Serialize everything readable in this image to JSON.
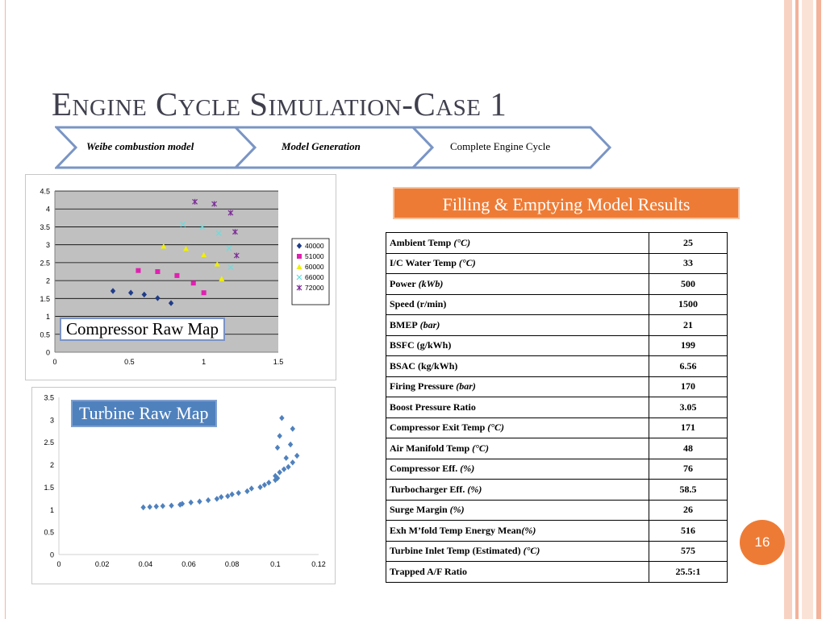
{
  "slide": {
    "title": "Engine Cycle Simulation-Case 1",
    "page_number": "16",
    "accent_color": "#ee7b35",
    "steps": [
      {
        "label": "Weibe combustion model",
        "italic": true
      },
      {
        "label": "Model Generation",
        "italic": true
      },
      {
        "label": "Complete Engine Cycle",
        "italic": false
      }
    ],
    "compressor_label": "Compressor Raw Map",
    "turbine_label": "Turbine Raw Map",
    "results_title": "Filling & Emptying Model Results"
  },
  "results": [
    {
      "name": "Ambient Temp",
      "unit": "(°C)",
      "value": "25"
    },
    {
      "name": "I/C Water Temp",
      "unit": "(°C)",
      "value": "33"
    },
    {
      "name": "Power",
      "unit": "(kWb)",
      "value": "500"
    },
    {
      "name": "Speed (r/min)",
      "unit": "",
      "value": "1500"
    },
    {
      "name": "BMEP",
      "unit": "(bar)",
      "value": "21"
    },
    {
      "name": "BSFC (g/kWh)",
      "unit": "",
      "value": "199"
    },
    {
      "name": "BSAC (kg/kWh)",
      "unit": "",
      "value": "6.56"
    },
    {
      "name": "Firing Pressure",
      "unit": "(bar)",
      "value": "170"
    },
    {
      "name": "Boost Pressure Ratio",
      "unit": "",
      "value": "3.05"
    },
    {
      "name": "Compressor Exit Temp",
      "unit": "(°C)",
      "value": "171"
    },
    {
      "name": "Air Manifold Temp",
      "unit": "(°C)",
      "value": "48"
    },
    {
      "name": "Compressor Eff.",
      "unit": "(%)",
      "value": "76"
    },
    {
      "name": "Turbocharger Eff.",
      "unit": "(%)",
      "value": "58.5"
    },
    {
      "name": "Surge Margin",
      "unit": "(%)",
      "value": "26"
    },
    {
      "name": "Exh M’fold Temp Energy Mean",
      "unit": "(%)",
      "value": "516"
    },
    {
      "name": "Turbine Inlet Temp (Estimated)",
      "unit": "(°C)",
      "value": "575"
    },
    {
      "name": "Trapped A/F Ratio",
      "unit": "",
      "value": "25.5:1"
    }
  ],
  "chart_data": [
    {
      "type": "scatter",
      "xlim": [
        0,
        1.5
      ],
      "ylim": [
        0,
        4.5
      ],
      "xticks": [
        "0",
        "0.5",
        "1",
        "1.5"
      ],
      "yticks": [
        "0",
        "0.5",
        "1",
        "1.5",
        "2",
        "2.5",
        "3",
        "3.5",
        "4",
        "4.5"
      ],
      "grid": true,
      "legend_position": "right",
      "series": [
        {
          "name": "40000",
          "color": "#1f3c88",
          "marker": "diamond",
          "x": [
            0.39,
            0.51,
            0.6,
            0.69,
            0.78
          ],
          "y": [
            1.71,
            1.66,
            1.61,
            1.51,
            1.37
          ]
        },
        {
          "name": "51000",
          "color": "#e020b0",
          "marker": "square",
          "x": [
            0.56,
            0.69,
            0.82,
            0.93,
            1.0
          ],
          "y": [
            2.28,
            2.25,
            2.14,
            1.93,
            1.66
          ]
        },
        {
          "name": "60000",
          "color": "#f0f000",
          "marker": "triangle",
          "x": [
            0.73,
            0.88,
            1.0,
            1.09,
            1.12
          ],
          "y": [
            2.96,
            2.89,
            2.72,
            2.46,
            2.05
          ]
        },
        {
          "name": "66000",
          "color": "#66dede",
          "marker": "x",
          "x": [
            0.86,
            0.99,
            1.1,
            1.17,
            1.18
          ],
          "y": [
            3.57,
            3.49,
            3.32,
            2.9,
            2.37
          ]
        },
        {
          "name": "72000",
          "color": "#7b2b96",
          "marker": "star",
          "x": [
            0.94,
            1.07,
            1.18,
            1.21,
            1.22
          ],
          "y": [
            4.2,
            4.14,
            3.89,
            3.36,
            2.7
          ]
        }
      ]
    },
    {
      "type": "scatter",
      "xlim": [
        0,
        0.12
      ],
      "ylim": [
        0,
        3.5
      ],
      "xticks": [
        "0",
        "0.02",
        "0.04",
        "0.06",
        "0.08",
        "0.1",
        "0.12"
      ],
      "yticks": [
        "0",
        "0.5",
        "1",
        "1.5",
        "2",
        "2.5",
        "3",
        "3.5"
      ],
      "grid": false,
      "legend_position": "none",
      "series": [
        {
          "color": "#4f81bd",
          "marker": "diamond",
          "x": [
            0.039,
            0.042,
            0.045,
            0.048,
            0.052,
            0.056,
            0.057,
            0.061,
            0.065,
            0.069,
            0.073,
            0.075,
            0.078,
            0.08,
            0.083,
            0.087,
            0.089,
            0.093,
            0.095,
            0.097,
            0.1,
            0.101,
            0.1,
            0.102,
            0.104,
            0.106,
            0.108,
            0.11,
            0.101,
            0.102,
            0.103,
            0.105,
            0.107,
            0.108
          ],
          "y": [
            1.05,
            1.06,
            1.07,
            1.08,
            1.09,
            1.11,
            1.13,
            1.16,
            1.18,
            1.21,
            1.24,
            1.28,
            1.3,
            1.34,
            1.37,
            1.41,
            1.47,
            1.5,
            1.55,
            1.6,
            1.66,
            1.7,
            1.75,
            1.83,
            1.9,
            1.95,
            2.05,
            2.2,
            2.38,
            2.64,
            3.04,
            2.15,
            2.45,
            2.8
          ]
        }
      ]
    }
  ]
}
